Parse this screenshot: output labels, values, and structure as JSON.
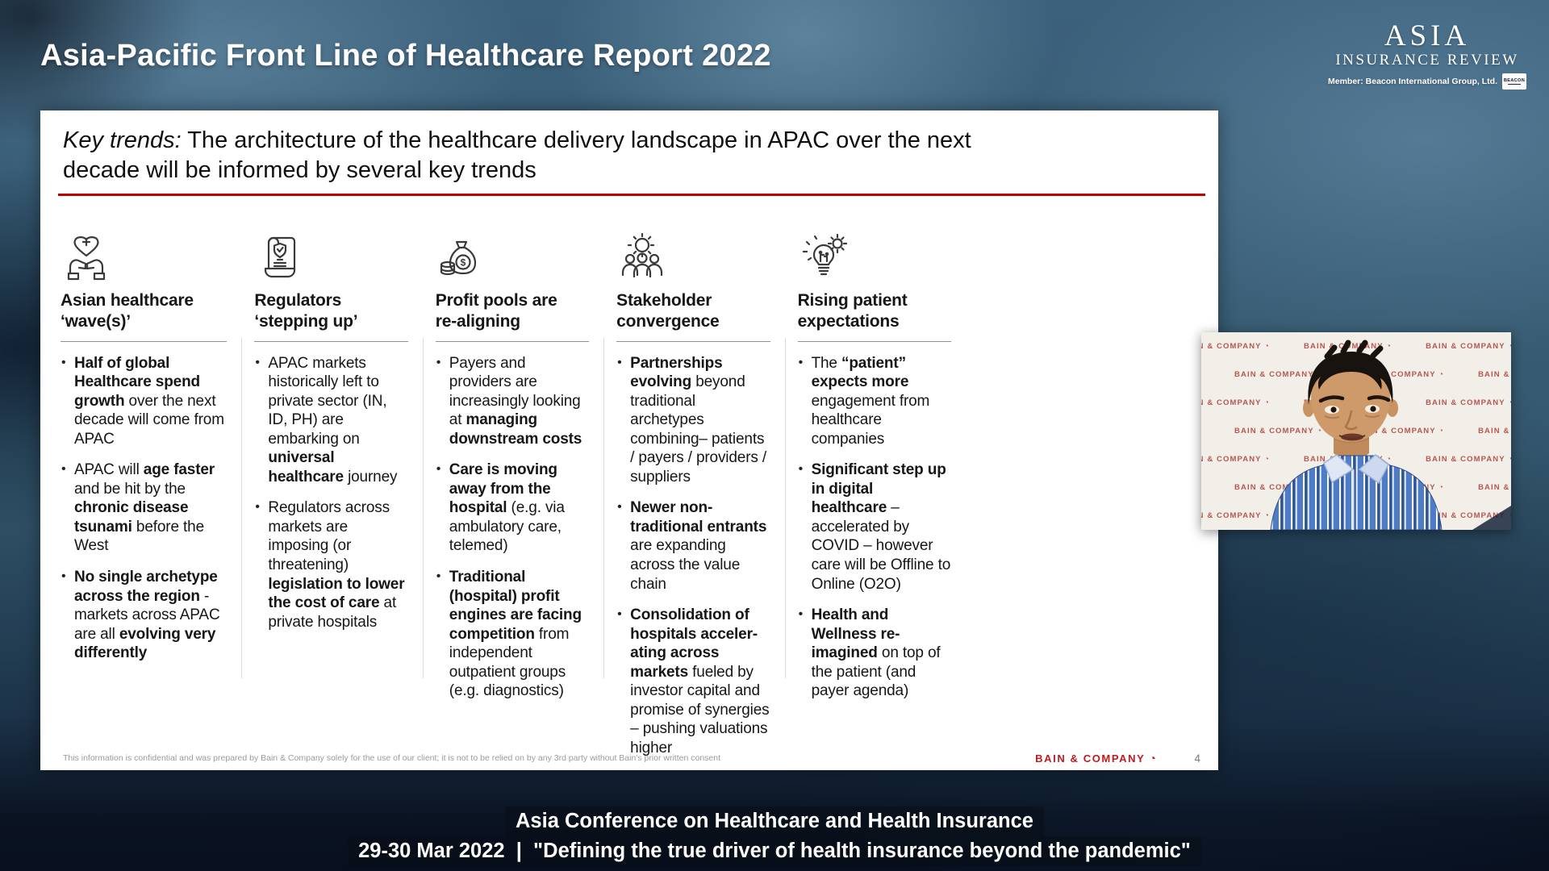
{
  "header": {
    "title": "Asia-Pacific Front Line of Healthcare Report 2022",
    "logo": {
      "line1": "ASIA",
      "line2": "INSURANCE REVIEW",
      "member": "Member: Beacon International Group, Ltd.",
      "badge": "BEACON"
    }
  },
  "slide": {
    "heading_italic": "Key trends:",
    "heading_rest": " The architecture of the healthcare delivery landscape in APAC over the next decade will be informed by several key trends",
    "columns": [
      {
        "icon": "hands-heart-icon",
        "title": "Asian healthcare\n‘wave(s)’",
        "bullets": [
          [
            {
              "t": "Half of global Healthcare spend growth",
              "b": true
            },
            {
              "t": " over the next decade will come from APAC",
              "b": false
            }
          ],
          [
            {
              "t": "APAC will ",
              "b": false
            },
            {
              "t": "age faster",
              "b": true
            },
            {
              "t": " and be hit by the ",
              "b": false
            },
            {
              "t": "chronic disease tsunami",
              "b": true
            },
            {
              "t": " before the West",
              "b": false
            }
          ],
          [
            {
              "t": "No single archetype across the region",
              "b": true
            },
            {
              "t": " - markets across APAC are all ",
              "b": false
            },
            {
              "t": "evolving very differently",
              "b": true
            }
          ]
        ]
      },
      {
        "icon": "scroll-shield-icon",
        "title": "Regulators\n‘stepping up’",
        "bullets": [
          [
            {
              "t": "APAC markets historically left to private sector (IN, ID, PH) are embarking on ",
              "b": false
            },
            {
              "t": "universal healthcare",
              "b": true
            },
            {
              "t": " journey",
              "b": false
            }
          ],
          [
            {
              "t": "Regulators across markets are imposing (or threatening) ",
              "b": false
            },
            {
              "t": "legislation to lower the cost of care",
              "b": true
            },
            {
              "t": " at private hospitals",
              "b": false
            }
          ]
        ]
      },
      {
        "icon": "money-bag-icon",
        "title": "Profit pools are\nre-aligning",
        "bullets": [
          [
            {
              "t": "Payers and providers are increasingly looking at ",
              "b": false
            },
            {
              "t": "managing downstream costs",
              "b": true
            }
          ],
          [
            {
              "t": "Care is moving away from the hospital",
              "b": true
            },
            {
              "t": " (e.g. via ambulatory care, telemed)",
              "b": false
            }
          ],
          [
            {
              "t": "Traditional (hospital) profit engines are facing competition",
              "b": true
            },
            {
              "t": " from independent outpatient groups (e.g. diagnostics)",
              "b": false
            }
          ]
        ]
      },
      {
        "icon": "people-gears-icon",
        "title": "Stakeholder\nconvergence",
        "bullets": [
          [
            {
              "t": "Partnerships evolving",
              "b": true
            },
            {
              "t": " beyond traditional archetypes combining– patients / payers / providers / suppliers",
              "b": false
            }
          ],
          [
            {
              "t": "Newer non-traditional entrants",
              "b": true
            },
            {
              "t": " are expanding across the value chain",
              "b": false
            }
          ],
          [
            {
              "t": "Consolidation of hospitals acceler-ating across markets",
              "b": true
            },
            {
              "t": " fueled by investor capital and promise of synergies – pushing valuations higher",
              "b": false
            }
          ]
        ]
      },
      {
        "icon": "bulb-gear-icon",
        "title": "Rising patient\nexpectations",
        "bullets": [
          [
            {
              "t": "The ",
              "b": false
            },
            {
              "t": "“patient” expects more",
              "b": true
            },
            {
              "t": " engagement from healthcare companies",
              "b": false
            }
          ],
          [
            {
              "t": "Significant step up in digital healthcare",
              "b": true
            },
            {
              "t": " – accelerated by COVID – however care will be Offline to Online (O2O)",
              "b": false
            }
          ],
          [
            {
              "t": "Health and Wellness re-imagined",
              "b": true
            },
            {
              "t": " on top of the patient (and payer agenda)",
              "b": false
            }
          ]
        ]
      }
    ],
    "footer": {
      "disclaimer": "This information is confidential and was prepared by Bain & Company solely for the use of our client; it is not to be relied on by any 3rd party without Bain's prior written consent",
      "brand": "BAIN & COMPANY",
      "brand_glyph": "◔",
      "page_number": "4"
    }
  },
  "webcam": {
    "watermark": "BAIN & COMPANY",
    "glyph": "◔"
  },
  "caption": {
    "line1": "Asia Conference on Healthcare and Health Insurance",
    "line2": "29-30 Mar 2022  |  \"Defining the true driver of health insurance beyond the pandemic\""
  },
  "colors": {
    "accent_red": "#c00000",
    "bain_red": "#c21a1a",
    "background_blue": "#35596f",
    "slide_white": "#ffffff"
  }
}
